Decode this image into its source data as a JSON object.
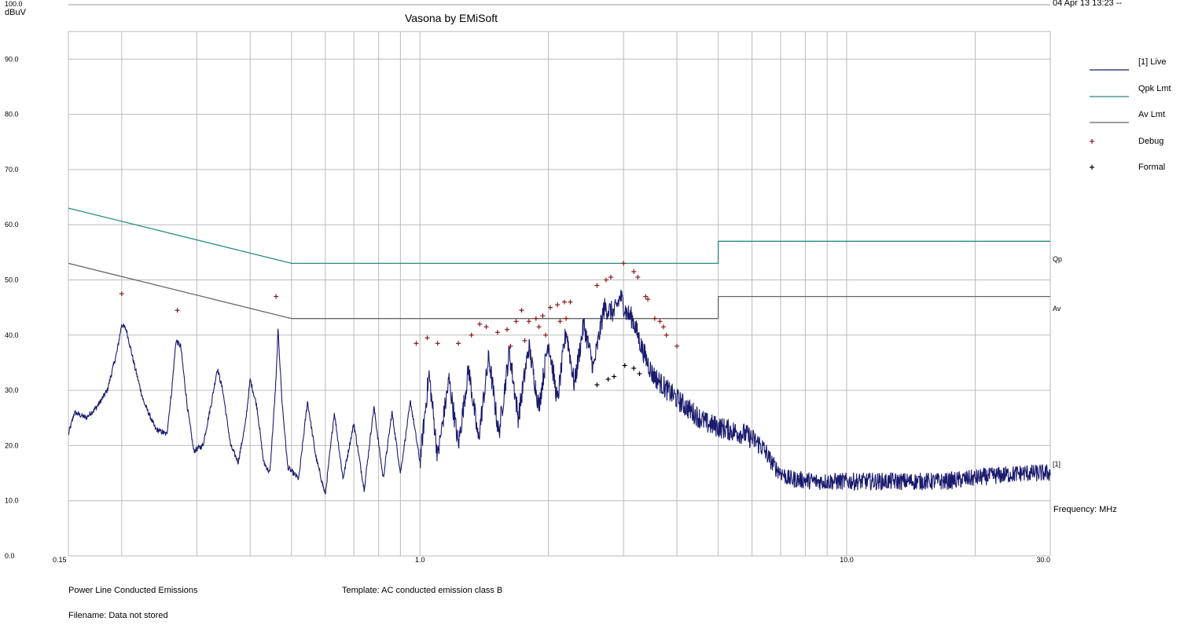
{
  "header": {
    "title": "Vasona by EMiSoft",
    "timestamp": "04 Apr 13 13:23 --"
  },
  "footer": {
    "test_name": "Power Line Conducted Emissions",
    "template": "Template: AC conducted emission class B",
    "filename": "Filename: Data not stored"
  },
  "colors": {
    "live": "#1a1a6e",
    "qpk_limit": "#2a8a80",
    "av_limit": "#666666",
    "debug": "#8b1a1a",
    "formal": "#000000",
    "grid": "#bbbbbb"
  },
  "chart_data": {
    "type": "line",
    "title": "Vasona by EMiSoft",
    "ylabel": "dBuV",
    "xlabel": "Frequency: MHz",
    "x_scale": "log",
    "xlim": [
      0.15,
      30.0
    ],
    "ylim": [
      0.0,
      100.0
    ],
    "y_ticks": [
      "0.0",
      "10.0",
      "20.0",
      "30.0",
      "40.0",
      "50.0",
      "60.0",
      "70.0",
      "80.0",
      "90.0",
      "100.0"
    ],
    "x_ticks": [
      {
        "value": 0.15,
        "label": "0.15"
      },
      {
        "value": 1.0,
        "label": "1.0"
      },
      {
        "value": 10.0,
        "label": "10.0"
      },
      {
        "value": 30.0,
        "label": "30.0"
      }
    ],
    "grid": true,
    "legend_position": "right",
    "legend": [
      "[1] Live",
      "Qpk Lmt",
      "Av Lmt",
      "Debug",
      "Formal"
    ],
    "right_labels": {
      "qp": "Qp",
      "av": "Av",
      "live": "[1]"
    },
    "limits": {
      "qpk": [
        {
          "x": 0.15,
          "y": 63.0
        },
        {
          "x": 0.5,
          "y": 53.0
        },
        {
          "x": 5.0,
          "y": 53.0
        },
        {
          "x": 5.0,
          "y": 57.0
        },
        {
          "x": 30.0,
          "y": 57.0
        }
      ],
      "av": [
        {
          "x": 0.15,
          "y": 53.0
        },
        {
          "x": 0.5,
          "y": 43.0
        },
        {
          "x": 5.0,
          "y": 43.0
        },
        {
          "x": 5.0,
          "y": 47.0
        },
        {
          "x": 30.0,
          "y": 47.0
        }
      ]
    },
    "series": [
      {
        "name": "[1] Live",
        "points": [
          {
            "x": 0.15,
            "y": 22
          },
          {
            "x": 0.155,
            "y": 26
          },
          {
            "x": 0.165,
            "y": 25
          },
          {
            "x": 0.175,
            "y": 27
          },
          {
            "x": 0.185,
            "y": 30
          },
          {
            "x": 0.195,
            "y": 37
          },
          {
            "x": 0.2,
            "y": 42
          },
          {
            "x": 0.205,
            "y": 41
          },
          {
            "x": 0.215,
            "y": 34
          },
          {
            "x": 0.225,
            "y": 28
          },
          {
            "x": 0.24,
            "y": 23
          },
          {
            "x": 0.255,
            "y": 22
          },
          {
            "x": 0.262,
            "y": 30
          },
          {
            "x": 0.268,
            "y": 39
          },
          {
            "x": 0.275,
            "y": 38
          },
          {
            "x": 0.285,
            "y": 27
          },
          {
            "x": 0.295,
            "y": 19
          },
          {
            "x": 0.31,
            "y": 20
          },
          {
            "x": 0.325,
            "y": 28
          },
          {
            "x": 0.335,
            "y": 34
          },
          {
            "x": 0.345,
            "y": 30
          },
          {
            "x": 0.36,
            "y": 20
          },
          {
            "x": 0.375,
            "y": 17
          },
          {
            "x": 0.39,
            "y": 24
          },
          {
            "x": 0.4,
            "y": 32
          },
          {
            "x": 0.415,
            "y": 27
          },
          {
            "x": 0.43,
            "y": 17
          },
          {
            "x": 0.445,
            "y": 15
          },
          {
            "x": 0.46,
            "y": 32
          },
          {
            "x": 0.465,
            "y": 41
          },
          {
            "x": 0.475,
            "y": 28
          },
          {
            "x": 0.49,
            "y": 16
          },
          {
            "x": 0.52,
            "y": 14
          },
          {
            "x": 0.545,
            "y": 28
          },
          {
            "x": 0.57,
            "y": 18
          },
          {
            "x": 0.6,
            "y": 11
          },
          {
            "x": 0.63,
            "y": 26
          },
          {
            "x": 0.66,
            "y": 14
          },
          {
            "x": 0.7,
            "y": 24
          },
          {
            "x": 0.74,
            "y": 12
          },
          {
            "x": 0.78,
            "y": 27
          },
          {
            "x": 0.82,
            "y": 14
          },
          {
            "x": 0.86,
            "y": 26
          },
          {
            "x": 0.9,
            "y": 15
          },
          {
            "x": 0.95,
            "y": 28
          },
          {
            "x": 1.0,
            "y": 17
          },
          {
            "x": 1.05,
            "y": 33
          },
          {
            "x": 1.1,
            "y": 18
          },
          {
            "x": 1.17,
            "y": 32
          },
          {
            "x": 1.23,
            "y": 20
          },
          {
            "x": 1.3,
            "y": 34
          },
          {
            "x": 1.37,
            "y": 21
          },
          {
            "x": 1.45,
            "y": 36
          },
          {
            "x": 1.53,
            "y": 22
          },
          {
            "x": 1.62,
            "y": 37
          },
          {
            "x": 1.7,
            "y": 25
          },
          {
            "x": 1.8,
            "y": 38
          },
          {
            "x": 1.9,
            "y": 27
          },
          {
            "x": 2.0,
            "y": 39
          },
          {
            "x": 2.1,
            "y": 28
          },
          {
            "x": 2.2,
            "y": 41
          },
          {
            "x": 2.3,
            "y": 31
          },
          {
            "x": 2.42,
            "y": 42
          },
          {
            "x": 2.55,
            "y": 34
          },
          {
            "x": 2.7,
            "y": 45
          },
          {
            "x": 2.85,
            "y": 44
          },
          {
            "x": 2.95,
            "y": 47
          },
          {
            "x": 3.05,
            "y": 44
          },
          {
            "x": 3.15,
            "y": 43
          },
          {
            "x": 3.3,
            "y": 38
          },
          {
            "x": 3.5,
            "y": 33
          },
          {
            "x": 3.8,
            "y": 30
          },
          {
            "x": 4.2,
            "y": 27
          },
          {
            "x": 4.7,
            "y": 24
          },
          {
            "x": 5.2,
            "y": 23
          },
          {
            "x": 5.8,
            "y": 22
          },
          {
            "x": 6.3,
            "y": 20
          },
          {
            "x": 6.8,
            "y": 16
          },
          {
            "x": 7.3,
            "y": 14
          },
          {
            "x": 8.5,
            "y": 13.5
          },
          {
            "x": 10.0,
            "y": 13.5
          },
          {
            "x": 13.0,
            "y": 13.5
          },
          {
            "x": 17.0,
            "y": 13.5
          },
          {
            "x": 22.0,
            "y": 14.5
          },
          {
            "x": 26.0,
            "y": 15
          },
          {
            "x": 30.0,
            "y": 15
          }
        ]
      },
      {
        "name": "Debug",
        "marker": "+",
        "points": [
          {
            "x": 0.2,
            "y": 47.5
          },
          {
            "x": 0.27,
            "y": 44.5
          },
          {
            "x": 0.46,
            "y": 47.0
          },
          {
            "x": 0.98,
            "y": 38.5
          },
          {
            "x": 1.04,
            "y": 39.5
          },
          {
            "x": 1.1,
            "y": 38.5
          },
          {
            "x": 1.23,
            "y": 38.5
          },
          {
            "x": 1.32,
            "y": 40.0
          },
          {
            "x": 1.38,
            "y": 42.0
          },
          {
            "x": 1.43,
            "y": 41.5
          },
          {
            "x": 1.52,
            "y": 40.5
          },
          {
            "x": 1.6,
            "y": 41.0
          },
          {
            "x": 1.63,
            "y": 38.0
          },
          {
            "x": 1.68,
            "y": 42.5
          },
          {
            "x": 1.73,
            "y": 44.5
          },
          {
            "x": 1.76,
            "y": 39.0
          },
          {
            "x": 1.8,
            "y": 42.5
          },
          {
            "x": 1.87,
            "y": 43.0
          },
          {
            "x": 1.9,
            "y": 41.5
          },
          {
            "x": 1.94,
            "y": 43.5
          },
          {
            "x": 1.97,
            "y": 40.0
          },
          {
            "x": 2.02,
            "y": 45.0
          },
          {
            "x": 2.1,
            "y": 45.5
          },
          {
            "x": 2.13,
            "y": 42.5
          },
          {
            "x": 2.18,
            "y": 46.0
          },
          {
            "x": 2.2,
            "y": 43.0
          },
          {
            "x": 2.25,
            "y": 46.0
          },
          {
            "x": 2.6,
            "y": 49.0
          },
          {
            "x": 2.73,
            "y": 50.0
          },
          {
            "x": 2.8,
            "y": 50.5
          },
          {
            "x": 3.0,
            "y": 53.0
          },
          {
            "x": 3.17,
            "y": 51.5
          },
          {
            "x": 3.24,
            "y": 50.5
          },
          {
            "x": 3.38,
            "y": 47.0
          },
          {
            "x": 3.42,
            "y": 46.5
          },
          {
            "x": 3.55,
            "y": 43.0
          },
          {
            "x": 3.65,
            "y": 42.5
          },
          {
            "x": 3.72,
            "y": 41.5
          },
          {
            "x": 3.78,
            "y": 40.0
          },
          {
            "x": 4.0,
            "y": 38.0
          }
        ]
      },
      {
        "name": "Formal",
        "marker": "+",
        "points": [
          {
            "x": 2.6,
            "y": 31.0
          },
          {
            "x": 2.76,
            "y": 32.0
          },
          {
            "x": 2.85,
            "y": 32.5
          },
          {
            "x": 3.02,
            "y": 34.5
          },
          {
            "x": 3.17,
            "y": 34.0
          },
          {
            "x": 3.27,
            "y": 33.0
          }
        ]
      }
    ]
  }
}
